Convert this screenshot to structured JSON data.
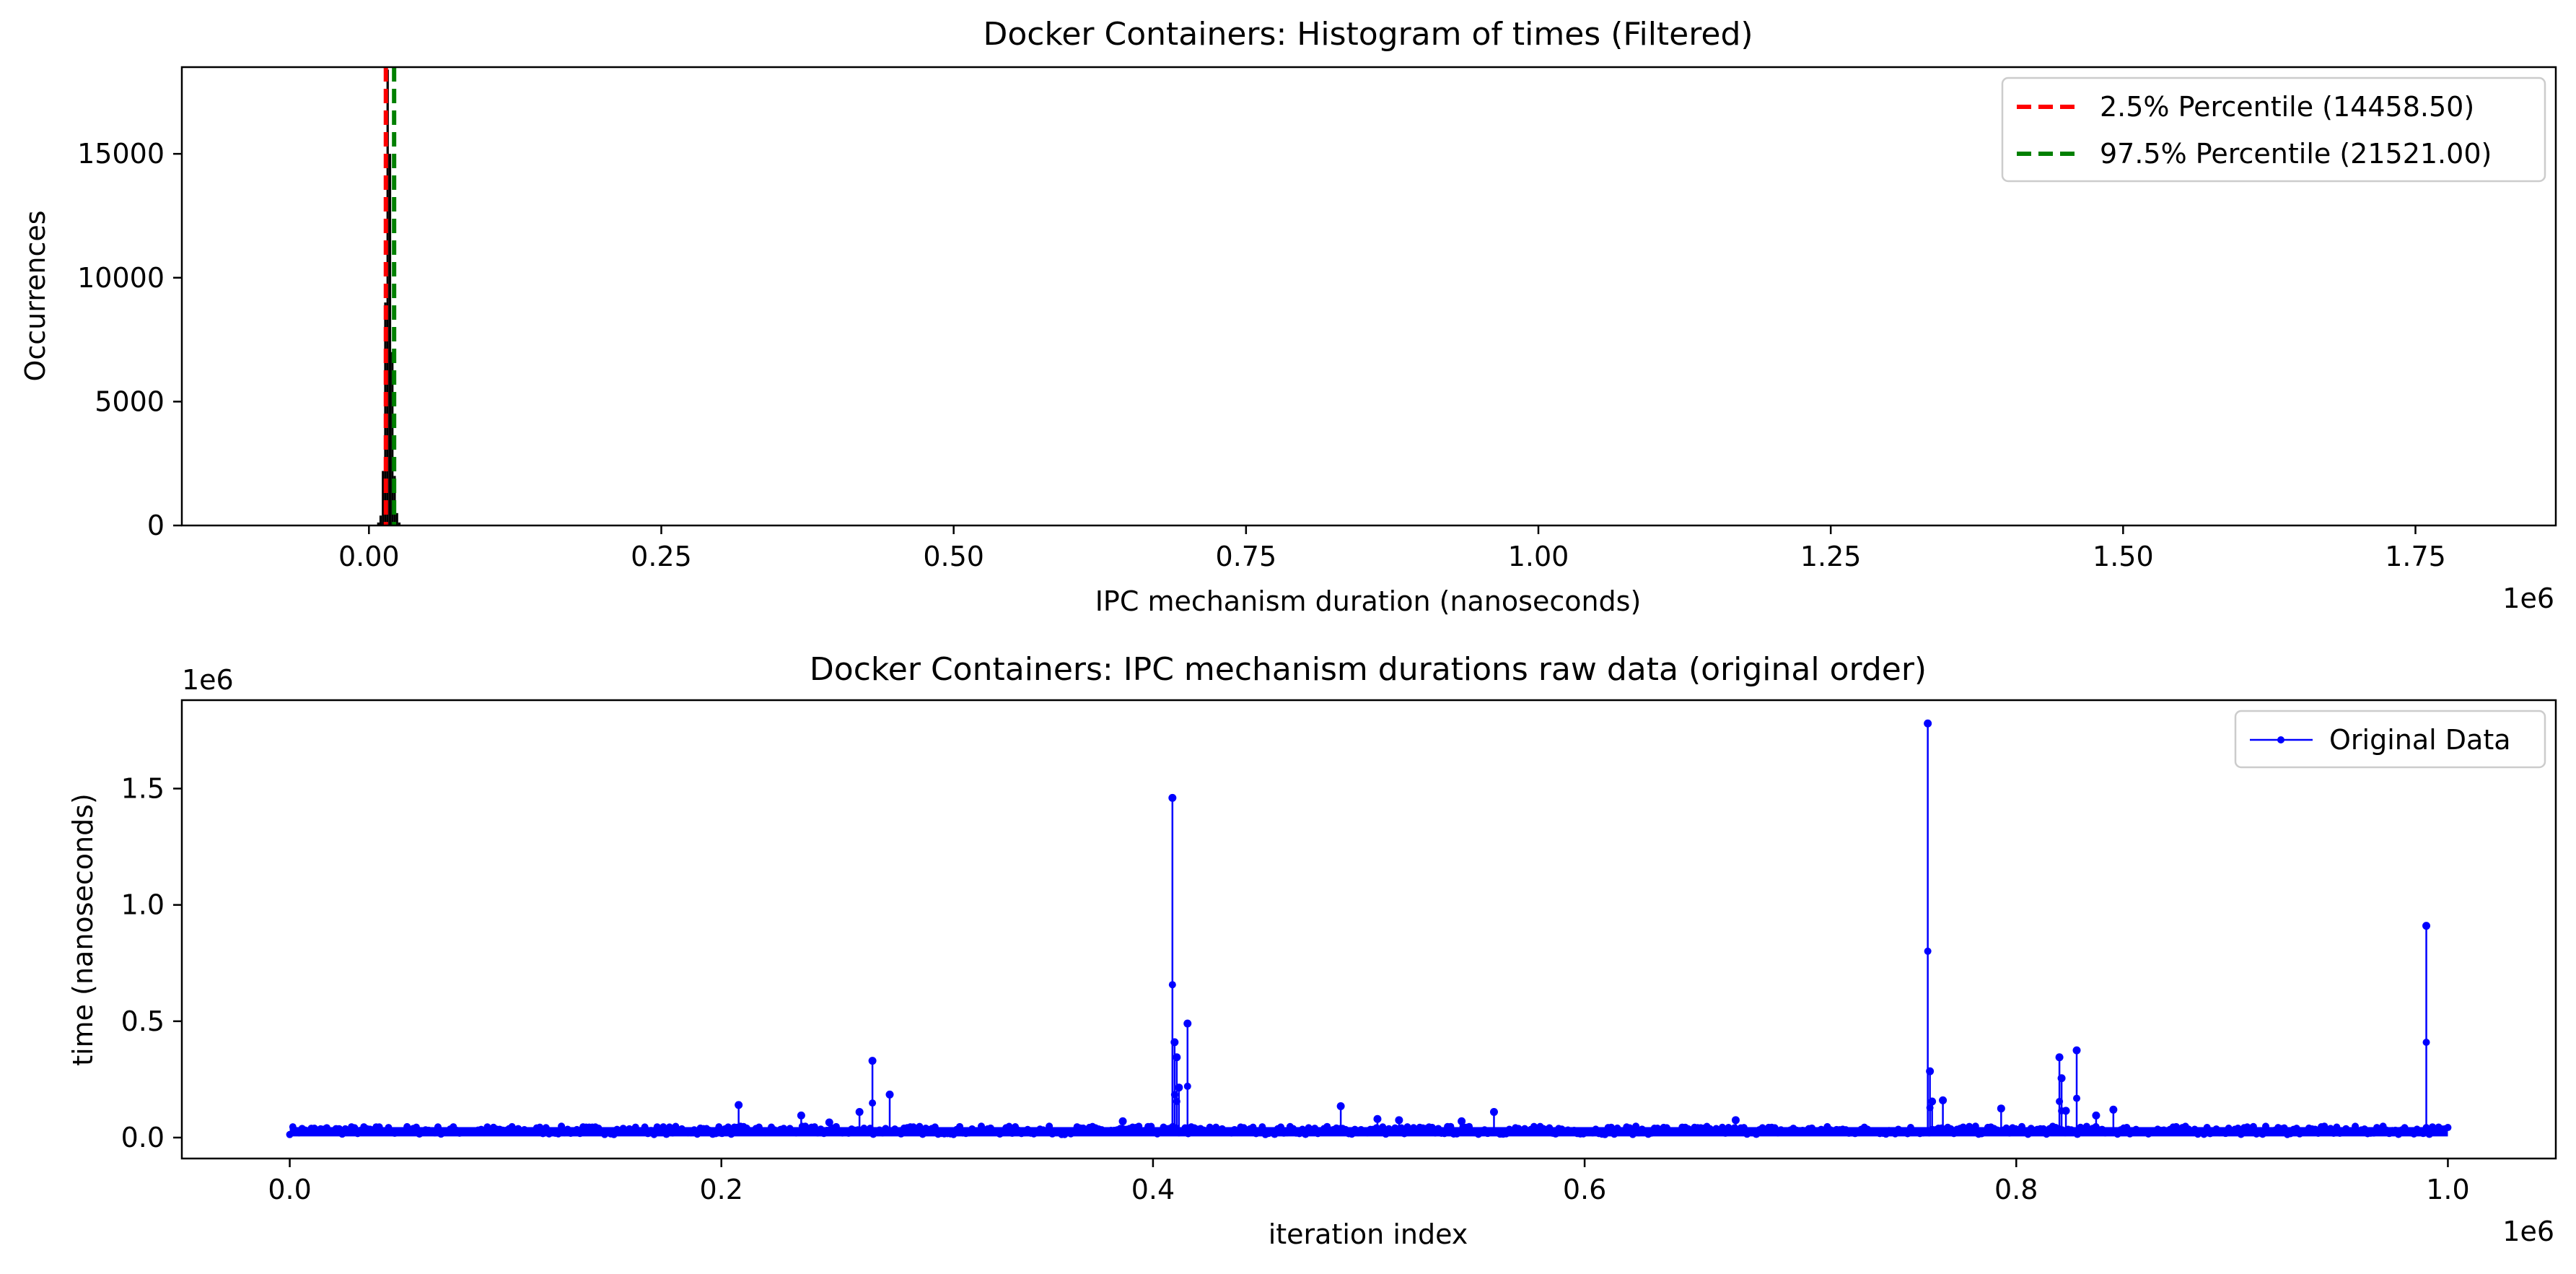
{
  "chart_data": [
    {
      "type": "bar",
      "title": "Docker Containers: Histogram of times (Filtered)",
      "xlabel": "IPC mechanism duration (nanoseconds)",
      "ylabel": "Occurrences",
      "x_offset_text": "1e6",
      "xlim": [
        -160000,
        1870000
      ],
      "ylim": [
        0,
        18500
      ],
      "xticks": [
        0,
        250000,
        500000,
        750000,
        1000000,
        1250000,
        1500000,
        1750000
      ],
      "xtick_labels": [
        "0.00",
        "0.25",
        "0.50",
        "0.75",
        "1.00",
        "1.25",
        "1.50",
        "1.75"
      ],
      "yticks": [
        0,
        5000,
        10000,
        15000
      ],
      "ytick_labels": [
        "0",
        "5000",
        "10000",
        "15000"
      ],
      "bins": [
        {
          "x0": 5000,
          "x1": 7000,
          "count": 30
        },
        {
          "x0": 7000,
          "x1": 9000,
          "count": 120
        },
        {
          "x0": 9000,
          "x1": 11000,
          "count": 400
        },
        {
          "x0": 11000,
          "x1": 13000,
          "count": 2200
        },
        {
          "x0": 13000,
          "x1": 15000,
          "count": 9000
        },
        {
          "x0": 15000,
          "x1": 17000,
          "count": 18400
        },
        {
          "x0": 17000,
          "x1": 19000,
          "count": 15000
        },
        {
          "x0": 19000,
          "x1": 21000,
          "count": 7000
        },
        {
          "x0": 21000,
          "x1": 23000,
          "count": 2000
        },
        {
          "x0": 23000,
          "x1": 25000,
          "count": 500
        },
        {
          "x0": 25000,
          "x1": 27000,
          "count": 120
        }
      ],
      "bar_color": "#000000",
      "percentile_lines": [
        {
          "name": "2.5% Percentile (14458.50)",
          "value": 14458.5,
          "color": "#ff0000"
        },
        {
          "name": "97.5% Percentile (21521.00)",
          "value": 21521.0,
          "color": "#008000"
        }
      ],
      "legend_position": "top-right",
      "grid": false
    },
    {
      "type": "line",
      "title": "Docker Containers: IPC mechanism durations raw data (original order)",
      "xlabel": "iteration index",
      "ylabel": "time (nanoseconds)",
      "x_offset_text": "1e6",
      "y_offset_text": "1e6",
      "xlim": [
        -50000,
        1050000
      ],
      "ylim": [
        -90000,
        1880000
      ],
      "xticks": [
        0,
        200000,
        400000,
        600000,
        800000,
        1000000
      ],
      "xtick_labels": [
        "0.0",
        "0.2",
        "0.4",
        "0.6",
        "0.8",
        "1.0"
      ],
      "yticks": [
        0,
        500000,
        1000000,
        1500000
      ],
      "ytick_labels": [
        "0.0",
        "0.5",
        "1.0",
        "1.5"
      ],
      "series": [
        {
          "name": "Original Data",
          "color": "#0000ff",
          "baseline_range": [
            5000,
            45000
          ],
          "x_range": [
            0,
            1000000
          ],
          "spikes": [
            {
              "x": 208000,
              "y": 140000
            },
            {
              "x": 237000,
              "y": 95000
            },
            {
              "x": 250000,
              "y": 65000
            },
            {
              "x": 264000,
              "y": 110000
            },
            {
              "x": 270000,
              "y": 330000
            },
            {
              "x": 278000,
              "y": 185000
            },
            {
              "x": 386000,
              "y": 70000
            },
            {
              "x": 409000,
              "y": 1460000
            },
            {
              "x": 410000,
              "y": 410000
            },
            {
              "x": 411000,
              "y": 345000
            },
            {
              "x": 412000,
              "y": 215000
            },
            {
              "x": 416000,
              "y": 490000
            },
            {
              "x": 487000,
              "y": 135000
            },
            {
              "x": 504000,
              "y": 80000
            },
            {
              "x": 514000,
              "y": 75000
            },
            {
              "x": 543000,
              "y": 70000
            },
            {
              "x": 558000,
              "y": 110000
            },
            {
              "x": 670000,
              "y": 75000
            },
            {
              "x": 759000,
              "y": 1780000
            },
            {
              "x": 760000,
              "y": 285000
            },
            {
              "x": 761000,
              "y": 155000
            },
            {
              "x": 766000,
              "y": 160000
            },
            {
              "x": 793000,
              "y": 125000
            },
            {
              "x": 820000,
              "y": 345000
            },
            {
              "x": 821000,
              "y": 255000
            },
            {
              "x": 823000,
              "y": 115000
            },
            {
              "x": 828000,
              "y": 375000
            },
            {
              "x": 837000,
              "y": 95000
            },
            {
              "x": 845000,
              "y": 120000
            },
            {
              "x": 990000,
              "y": 910000
            }
          ]
        }
      ],
      "legend_position": "top-right",
      "grid": false
    }
  ]
}
